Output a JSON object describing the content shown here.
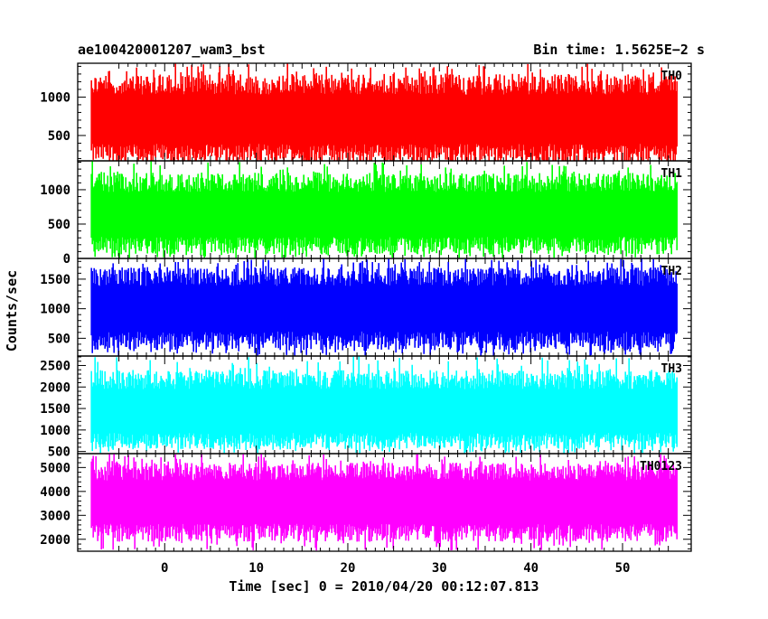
{
  "header": {
    "left_title": "ae100420001207_wam3_bst",
    "right_title": "Bin time: 1.5625E−2 s"
  },
  "chart_data": {
    "type": "line",
    "title": "ae100420001207_wam3_bst",
    "subtitle": "Bin time: 1.5625E−2 s",
    "xlabel": "Time [sec] 0 = 2010/04/20 00:12:07.813",
    "ylabel": "Counts/sec",
    "xlim": [
      -9.5,
      57.5
    ],
    "data_x_range": [
      -8,
      56
    ],
    "x_ticks": [
      0,
      10,
      20,
      30,
      40,
      50
    ],
    "x_tick_labels": [
      "0",
      "10",
      "20",
      "30",
      "40",
      "50"
    ],
    "grid": false,
    "panels": [
      {
        "name": "TH0",
        "color": "#ff0000",
        "ylim": [
          170,
          1440
        ],
        "y_ticks": [
          500,
          1000
        ],
        "y_tick_labels": [
          "500",
          "1000"
        ],
        "mean": 700,
        "typical_low": 140,
        "typical_high": 1300,
        "min": 170,
        "max": 1440
      },
      {
        "name": "TH1",
        "color": "#00ff00",
        "ylim": [
          0,
          1420
        ],
        "y_ticks": [
          0,
          500,
          1000
        ],
        "y_tick_labels": [
          "0",
          "500",
          "1000"
        ],
        "mean": 620,
        "typical_low": 60,
        "typical_high": 1250,
        "min": 0,
        "max": 1420
      },
      {
        "name": "TH2",
        "color": "#0000ff",
        "ylim": [
          200,
          1850
        ],
        "y_ticks": [
          500,
          1000,
          1500
        ],
        "y_tick_labels": [
          "500",
          "1000",
          "1500"
        ],
        "mean": 1000,
        "typical_low": 300,
        "typical_high": 1700,
        "min": 200,
        "max": 1850
      },
      {
        "name": "TH3",
        "color": "#00ffff",
        "ylim": [
          450,
          2720
        ],
        "y_ticks": [
          500,
          1000,
          1500,
          2000,
          2500
        ],
        "y_tick_labels": [
          "500",
          "1000",
          "1500",
          "2000",
          "2500"
        ],
        "mean": 1400,
        "typical_low": 550,
        "typical_high": 2400,
        "min": 450,
        "max": 2720
      },
      {
        "name": "TH0123",
        "color": "#ff00ff",
        "ylim": [
          1500,
          5580
        ],
        "y_ticks": [
          2000,
          3000,
          4000,
          5000
        ],
        "y_tick_labels": [
          "2000",
          "3000",
          "4000",
          "5000"
        ],
        "mean": 3550,
        "typical_low": 1900,
        "typical_high": 5200,
        "min": 1500,
        "max": 5580
      }
    ]
  }
}
